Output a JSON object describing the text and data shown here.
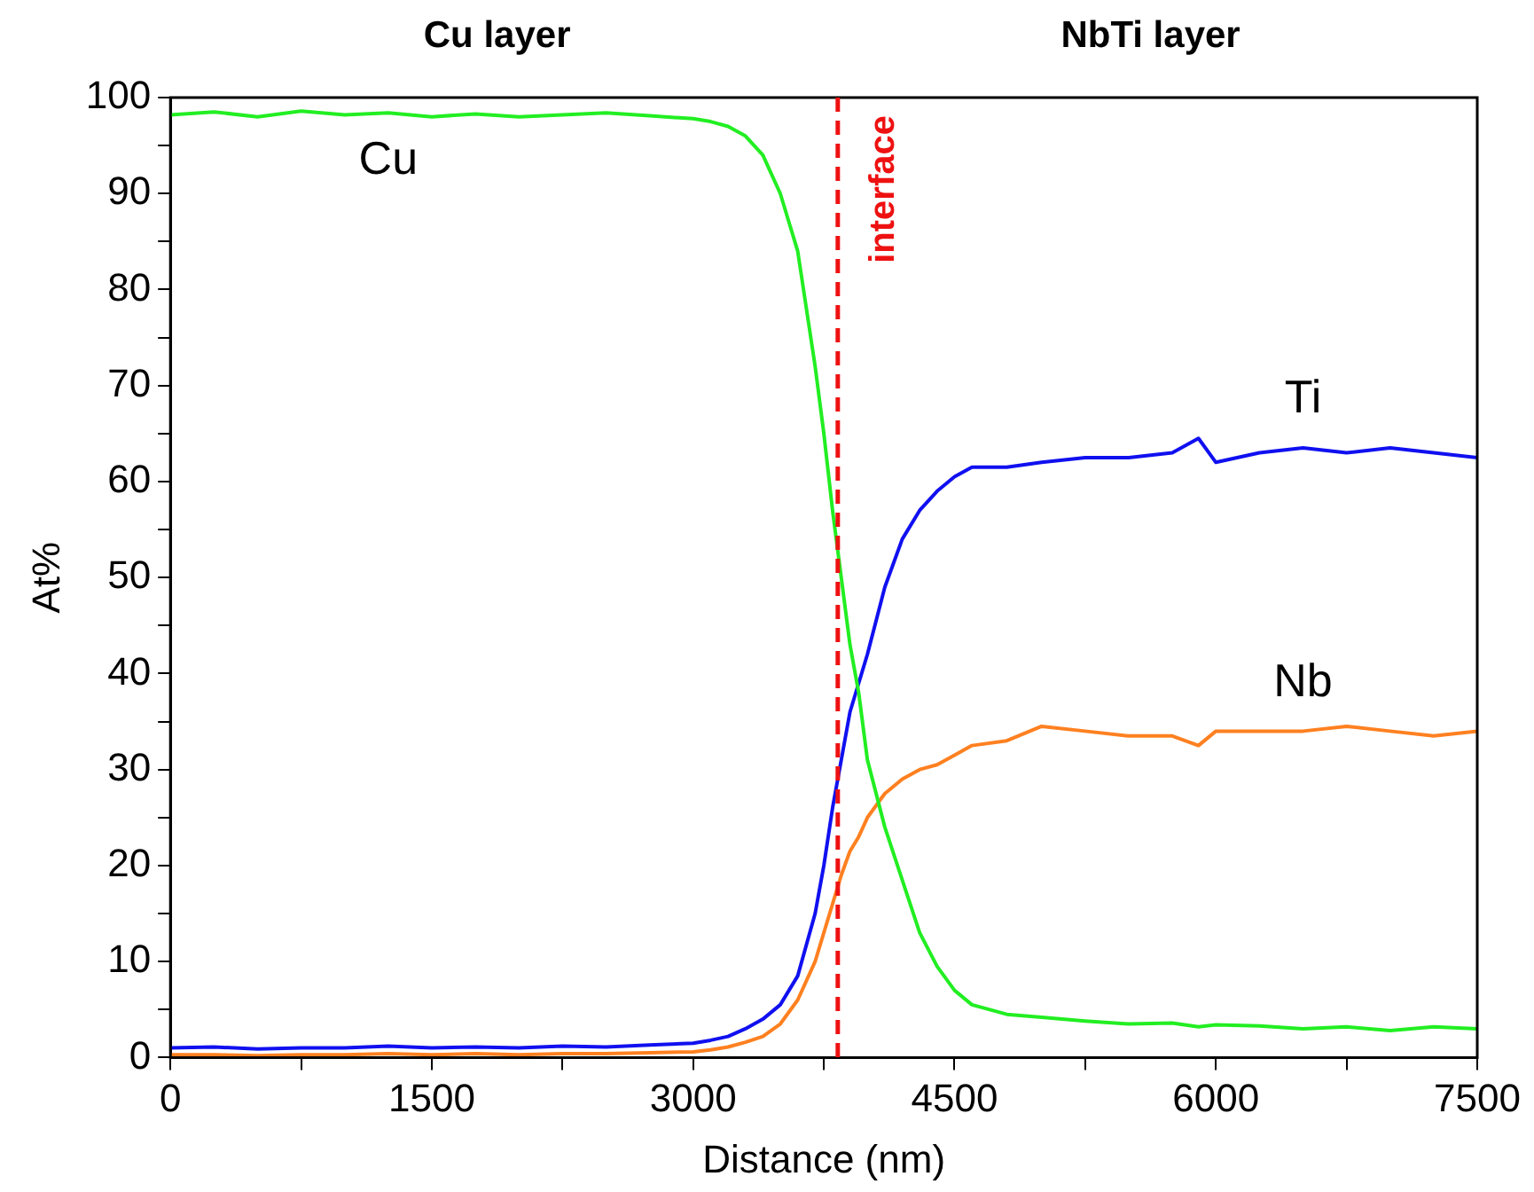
{
  "chart_data": {
    "type": "line",
    "xlabel": "Distance (nm)",
    "ylabel": "At%",
    "annotations": [
      "Cu layer",
      "NbTi layer"
    ],
    "x": [
      0,
      250,
      500,
      750,
      1000,
      1250,
      1500,
      1750,
      2000,
      2250,
      2500,
      2750,
      3000,
      3100,
      3200,
      3300,
      3400,
      3500,
      3600,
      3700,
      3750,
      3800,
      3850,
      3900,
      3950,
      4000,
      4100,
      4200,
      4300,
      4400,
      4500,
      4600,
      4800,
      5000,
      5250,
      5500,
      5750,
      5900,
      6000,
      6250,
      6500,
      6750,
      7000,
      7250,
      7500
    ],
    "series": [
      {
        "name": "Cu",
        "color": "#22ee22",
        "values": [
          98.2,
          98.5,
          98,
          98.6,
          98.2,
          98.4,
          98,
          98.3,
          98,
          98.2,
          98.4,
          98.1,
          97.8,
          97.5,
          97,
          96,
          94,
          90,
          84,
          72,
          65,
          57,
          50,
          43,
          38,
          31,
          24,
          18.5,
          13,
          9.5,
          7,
          5.5,
          4.5,
          4.2,
          3.8,
          3.5,
          3.6,
          3.2,
          3.4,
          3.3,
          3,
          3.2,
          2.8,
          3.2,
          3
        ]
      },
      {
        "name": "Ti",
        "color": "#1010f0",
        "values": [
          1,
          1.1,
          0.9,
          1,
          1,
          1.2,
          1,
          1.1,
          1,
          1.2,
          1.1,
          1.3,
          1.5,
          1.8,
          2.2,
          3,
          4,
          5.5,
          8.5,
          15,
          20,
          26,
          31,
          36,
          39,
          42,
          49,
          54,
          57,
          59,
          60.5,
          61.5,
          61.5,
          62,
          62.5,
          62.5,
          63,
          64.5,
          62,
          63,
          63.5,
          63,
          63.5,
          63,
          62.5
        ]
      },
      {
        "name": "Nb",
        "color": "#ff8020",
        "values": [
          0.3,
          0.3,
          0.2,
          0.3,
          0.3,
          0.4,
          0.3,
          0.4,
          0.3,
          0.4,
          0.4,
          0.5,
          0.6,
          0.8,
          1.1,
          1.6,
          2.2,
          3.5,
          6,
          10,
          13,
          16,
          19,
          21.5,
          23,
          25,
          27.5,
          29,
          30,
          30.5,
          31.5,
          32.5,
          33,
          34.5,
          34,
          33.5,
          33.5,
          32.5,
          34,
          34,
          34,
          34.5,
          34,
          33.5,
          34
        ]
      }
    ],
    "xlim": [
      0,
      7500
    ],
    "xticks": [
      0,
      {
        "value": 750,
        "label": null
      },
      1500,
      {
        "value": 2250,
        "label": null
      },
      3000,
      {
        "value": 3750,
        "label": null
      },
      4500,
      {
        "value": 5250,
        "label": null
      },
      6000,
      {
        "value": 6750,
        "label": null
      },
      7500
    ],
    "ylim": [
      0,
      100
    ],
    "yticks": [
      0,
      {
        "value": 5,
        "label": null
      },
      10,
      {
        "value": 15,
        "label": null
      },
      20,
      {
        "value": 25,
        "label": null
      },
      30,
      {
        "value": 35,
        "label": null
      },
      40,
      {
        "value": 45,
        "label": null
      },
      50,
      {
        "value": 55,
        "label": null
      },
      60,
      {
        "value": 65,
        "label": null
      },
      70,
      {
        "value": 75,
        "label": null
      },
      80,
      {
        "value": 85,
        "label": null
      },
      90,
      {
        "value": 95,
        "label": null
      },
      100
    ],
    "ref_lines": [
      {
        "axis": "x",
        "value": 3830,
        "label": "interface",
        "color": "#ee1111",
        "line_style": "dashed"
      }
    ],
    "grid": false,
    "legend": false,
    "marker": "none",
    "line_style": "solid"
  }
}
